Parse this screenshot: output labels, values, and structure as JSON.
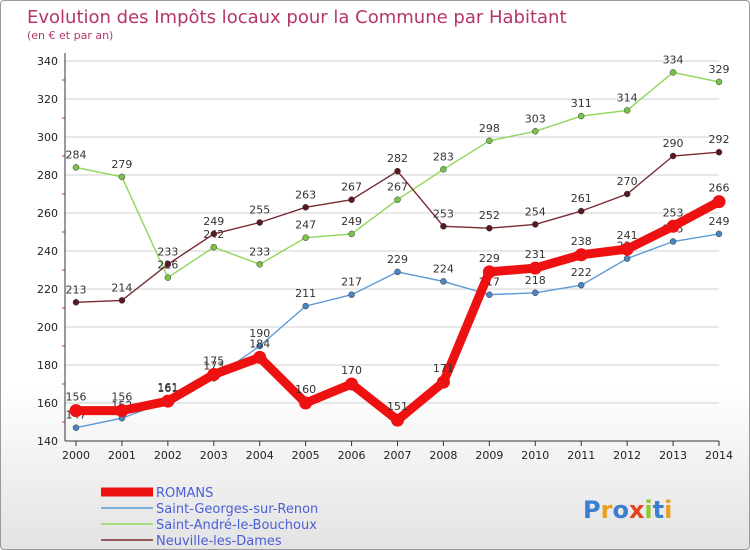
{
  "title": "Evolution des Impôts locaux pour la Commune par Habitant",
  "subtitle": "(en € et par an)",
  "logo": "Proxiti",
  "colors": {
    "title": "#b5356b",
    "grid": "#d0d0d0",
    "axis": "#333333"
  },
  "chart_data": {
    "type": "line",
    "title": "Evolution des Impôts locaux pour la Commune par Habitant",
    "subtitle": "(en € et par an)",
    "x": [
      "2000",
      "2001",
      "2002",
      "2003",
      "2004",
      "2005",
      "2006",
      "2007",
      "2008",
      "2009",
      "2010",
      "2011",
      "2012",
      "2013",
      "2014"
    ],
    "ylim": [
      140,
      340
    ],
    "yticks": [
      140,
      160,
      180,
      200,
      220,
      240,
      260,
      280,
      300,
      320,
      340
    ],
    "grid": "horizontal",
    "legend_position": "bottom-left",
    "series": [
      {
        "name": "Saint-Georges-sur-Renon",
        "color": "#5b9bd5",
        "marker": "#4a86c4",
        "values": [
          147,
          152,
          161,
          173,
          190,
          211,
          217,
          229,
          224,
          217,
          218,
          222,
          236,
          245,
          249
        ],
        "labels": [
          "147",
          "152",
          "161",
          "173",
          "190",
          "211",
          "217",
          "229",
          "224",
          "217",
          "218",
          "222",
          "236",
          "245",
          "249"
        ]
      },
      {
        "name": "Saint-André-le-Bouchoux",
        "color": "#8fd65a",
        "marker": "#79c447",
        "values": [
          284,
          279,
          226,
          242,
          233,
          247,
          249,
          267,
          283,
          298,
          303,
          311,
          314,
          334,
          329
        ],
        "labels": [
          "284",
          "279",
          "226",
          "242",
          "233",
          "247",
          "249",
          "267",
          "283",
          "298",
          "303",
          "311",
          "314",
          "334",
          "329"
        ]
      },
      {
        "name": "Neuville-les-Dames",
        "color": "#7a2a33",
        "marker": "#5a1820",
        "values": [
          213,
          214,
          233,
          249,
          255,
          263,
          267,
          282,
          253,
          252,
          254,
          261,
          270,
          290,
          292
        ],
        "labels": [
          "213",
          "214",
          "233",
          "249",
          "255",
          "263",
          "267",
          "282",
          "253",
          "252",
          "254",
          "261",
          "270",
          "290",
          "292"
        ]
      },
      {
        "name": "ROMANS",
        "color": "#ee1111",
        "marker": "#ee1111",
        "bold": true,
        "values": [
          156,
          156,
          161,
          175,
          184,
          160,
          170,
          151,
          171,
          229,
          231,
          238,
          241,
          253,
          266
        ],
        "labels": [
          "156",
          "156",
          "161",
          "175",
          "184",
          "160",
          "170",
          "151",
          "171",
          "229",
          "231",
          "238",
          "241",
          "253",
          "266"
        ]
      }
    ],
    "legend_order": [
      "ROMANS",
      "Saint-Georges-sur-Renon",
      "Saint-André-le-Bouchoux",
      "Neuville-les-Dames"
    ]
  }
}
